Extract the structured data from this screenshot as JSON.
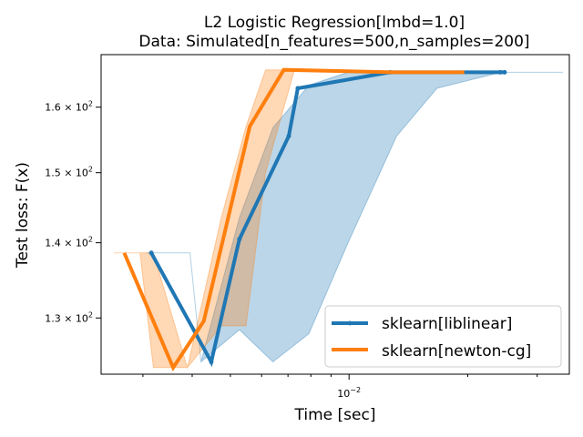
{
  "chart_data": {
    "type": "line",
    "title": "L2 Logistic Regression[lmbd=1.0]",
    "subtitle": "Data: Simulated[n_features=500,n_samples=200]",
    "xlabel": "Time [sec]",
    "ylabel": "Test loss: F(x)",
    "xscale": "log",
    "yscale": "log",
    "xlim": [
      0.00235,
      0.0362
    ],
    "ylim": [
      123.0,
      168.5
    ],
    "x_ticks": [
      {
        "value": 0.01,
        "base": "10",
        "exp": "−2"
      }
    ],
    "y_ticks": [
      {
        "value": 130,
        "mantissa": "1.3",
        "base": "10",
        "exp": "2"
      },
      {
        "value": 140,
        "mantissa": "1.4",
        "base": "10",
        "exp": "2"
      },
      {
        "value": 150,
        "mantissa": "1.5",
        "base": "10",
        "exp": "2"
      },
      {
        "value": 160,
        "mantissa": "1.6",
        "base": "10",
        "exp": "2"
      }
    ],
    "legend_position": "lower-right",
    "grid": false,
    "series": [
      {
        "name": "sklearn[liblinear]",
        "color": "#1f77b4",
        "marker": "dot",
        "x": [
          0.00315,
          0.00447,
          0.00527,
          0.00703,
          0.00741,
          0.0127,
          0.0242,
          0.0248
        ],
        "y": [
          138.6,
          124.5,
          140.5,
          155.5,
          163.0,
          165.6,
          165.6,
          165.6
        ],
        "band": {
          "x": [
            0.00306,
            0.00395,
            0.00421,
            0.00527,
            0.00641,
            0.00791,
            0.00994,
            0.0132,
            0.0167,
            0.0243,
            0.0349
          ],
          "lower": [
            138.6,
            138.6,
            124.5,
            128.5,
            124.5,
            128.0,
            140.0,
            155.5,
            163.0,
            165.6,
            165.6
          ],
          "upper": [
            138.6,
            138.6,
            124.5,
            143.5,
            156.8,
            163.5,
            165.6,
            165.6,
            165.6,
            165.6,
            165.6
          ]
        }
      },
      {
        "name": "sklearn[newton-cg]",
        "color": "#ff7f0e",
        "marker": "none",
        "x": [
          0.00269,
          0.00358,
          0.00428,
          0.0056,
          0.00683,
          0.0129,
          0.0196
        ],
        "y": [
          138.6,
          123.8,
          129.6,
          157.0,
          166.0,
          165.6,
          165.6
        ],
        "band": {
          "x": [
            0.00253,
            0.00295,
            0.00319,
            0.00389,
            0.00474,
            0.00548,
            0.00614,
            0.00727,
            0.0129,
            0.0196
          ],
          "lower": [
            138.6,
            138.6,
            123.8,
            123.8,
            129.0,
            129.0,
            150.0,
            166.0,
            165.6,
            165.6
          ],
          "upper": [
            138.6,
            138.6,
            138.6,
            123.8,
            143.5,
            157.0,
            166.0,
            166.0,
            165.6,
            165.6
          ]
        }
      }
    ]
  }
}
